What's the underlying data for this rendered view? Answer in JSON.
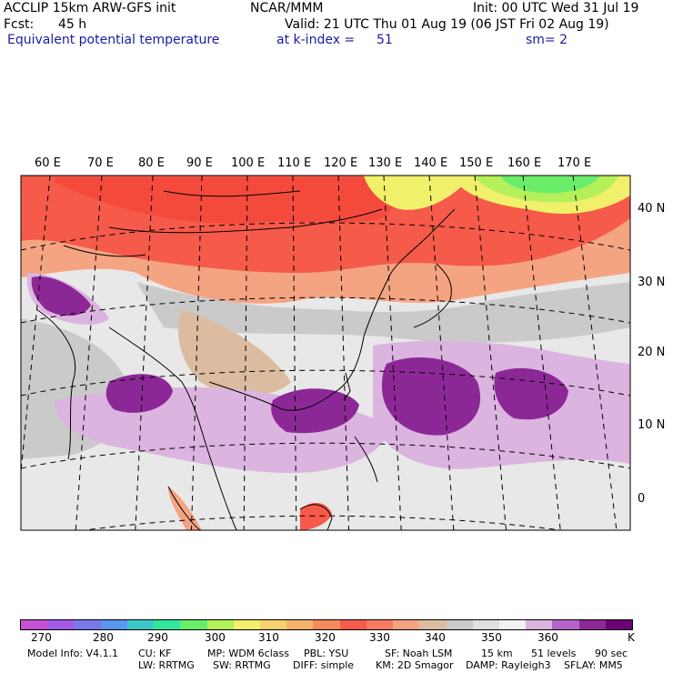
{
  "header": {
    "model": "ACCLIP 15km ARW-GFS init",
    "center": "NCAR/MMM",
    "init": "Init: 00 UTC Wed 31 Jul 19",
    "fcst_label": "Fcst:",
    "fcst_value": "45 h",
    "valid": "Valid: 21 UTC Thu 01 Aug 19 (06 JST Fri 02 Aug 19)",
    "field": "Equivalent potential temperature",
    "level_label": "at k-index =",
    "level_value": "51",
    "smooth": "sm= 2"
  },
  "map": {
    "longitude_labels": [
      "60 E",
      "70 E",
      "80 E",
      "90 E",
      "100 E",
      "110 E",
      "120 E",
      "130 E",
      "140 E",
      "150 E",
      "160 E",
      "170 E"
    ],
    "latitude_labels": [
      "40 N",
      "30 N",
      "20 N",
      "10 N",
      "0"
    ]
  },
  "colorbar": {
    "colors": [
      "#c850d2",
      "#a05ae6",
      "#7a78e8",
      "#5a96ee",
      "#3cc8c8",
      "#32e6a0",
      "#6aee6a",
      "#b4f05a",
      "#f0f06a",
      "#f5d26e",
      "#f5b46e",
      "#f58a5a",
      "#f55a4a",
      "#f57a62",
      "#f5a482",
      "#dcbca0",
      "#cacaca",
      "#e0e0e0",
      "#f2f2f2",
      "#dcb4e0",
      "#b464c8",
      "#8c2896",
      "#6e0078"
    ],
    "labels": [
      "270",
      "280",
      "290",
      "300",
      "310",
      "320",
      "330",
      "340",
      "350",
      "360"
    ],
    "unit": "K"
  },
  "footer": {
    "line1": [
      "Model Info: V4.1.1",
      "CU: KF",
      "MP: WDM 6class",
      "PBL: YSU",
      "SF: Noah LSM",
      "15 km",
      "51 levels",
      "90 sec"
    ],
    "line2": [
      "LW: RRTMG",
      "SW: RRTMG",
      "DIFF: simple",
      "KM: 2D Smagor",
      "DAMP: Rayleigh3",
      "SFLAY: MM5"
    ]
  }
}
